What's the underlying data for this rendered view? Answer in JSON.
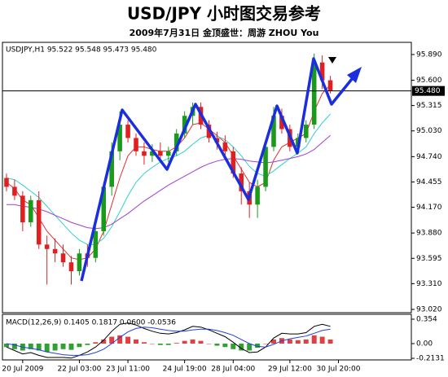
{
  "chart_data": [
    {
      "type": "candlestick",
      "title": "USD/JPY  小时图交易参考",
      "subtitle": "2009年7月31日    金顶盛世：周游 ZHOU You",
      "label": "USDJPY,H1  95.522 95.548 95.473 95.480",
      "categories": [
        null,
        null,
        "20 Jul 2009",
        null,
        null,
        null,
        null,
        null,
        null,
        "22 Jul 03:00",
        null,
        null,
        null,
        null,
        null,
        "23 Jul 11:00",
        null,
        null,
        null,
        null,
        null,
        null,
        "24 Jul 19:00",
        null,
        null,
        null,
        null,
        null,
        "28 Jul 04:00",
        null,
        null,
        null,
        null,
        null,
        null,
        "29 Jul 12:00",
        null,
        null,
        null,
        null,
        null,
        "30 Jul 20:00",
        null,
        null,
        null,
        null,
        null,
        null,
        null,
        null
      ],
      "open": [
        94.5,
        94.4,
        94.3,
        94.0,
        94.25,
        93.75,
        93.7,
        93.65,
        93.55,
        93.45,
        93.65,
        93.6,
        93.9,
        94.4,
        94.8,
        95.1,
        94.95,
        94.8,
        94.75,
        94.8,
        94.75,
        94.8,
        95.0,
        95.2,
        95.3,
        95.1,
        94.95,
        94.9,
        94.8,
        94.55,
        94.35,
        94.2,
        94.4,
        94.85,
        95.2,
        95.05,
        94.85,
        94.95,
        95.1,
        95.8,
        95.6,
        null,
        null,
        null,
        null,
        null,
        null,
        null,
        null,
        null
      ],
      "high": [
        94.55,
        94.48,
        94.35,
        94.3,
        94.35,
        93.85,
        93.82,
        93.75,
        93.62,
        93.7,
        93.75,
        93.95,
        94.45,
        94.9,
        95.25,
        95.15,
        95.0,
        94.9,
        94.88,
        94.9,
        94.85,
        95.05,
        95.25,
        95.35,
        95.35,
        95.15,
        95.02,
        94.98,
        94.85,
        94.62,
        94.45,
        94.48,
        94.9,
        95.3,
        95.28,
        95.1,
        95.0,
        95.15,
        95.9,
        95.88,
        95.65,
        null,
        null,
        null,
        null,
        null,
        null,
        null,
        null,
        null
      ],
      "low": [
        94.35,
        94.25,
        93.9,
        93.95,
        93.7,
        93.3,
        93.55,
        93.5,
        93.3,
        93.4,
        93.5,
        93.55,
        93.85,
        94.3,
        94.7,
        94.9,
        94.75,
        94.65,
        94.68,
        94.7,
        94.68,
        94.75,
        94.95,
        95.1,
        95.05,
        94.9,
        94.82,
        94.75,
        94.5,
        94.2,
        94.05,
        94.05,
        94.35,
        94.8,
        95.0,
        94.8,
        94.78,
        94.9,
        95.05,
        95.5,
        95.45,
        null,
        null,
        null,
        null,
        null,
        null,
        null,
        null,
        null
      ],
      "close": [
        94.4,
        94.3,
        94.0,
        94.25,
        93.75,
        93.7,
        93.65,
        93.55,
        93.45,
        93.65,
        93.6,
        93.9,
        94.4,
        94.8,
        95.1,
        94.95,
        94.8,
        94.75,
        94.8,
        94.75,
        94.8,
        95.0,
        95.2,
        95.3,
        95.1,
        94.95,
        94.9,
        94.8,
        94.55,
        94.35,
        94.2,
        94.4,
        94.85,
        95.2,
        95.05,
        94.85,
        94.95,
        95.1,
        95.8,
        95.6,
        95.48,
        null,
        null,
        null,
        null,
        null,
        null,
        null,
        null,
        null
      ],
      "up_color": "#1a9a1a",
      "down_color": "#e02020",
      "lines": [
        {
          "color": "#e03030",
          "values": [
            94.45,
            94.38,
            94.25,
            94.2,
            94.05,
            93.9,
            93.8,
            93.7,
            93.6,
            93.58,
            93.6,
            93.7,
            93.9,
            94.2,
            94.5,
            94.75,
            94.85,
            94.85,
            94.82,
            94.8,
            94.8,
            94.85,
            94.95,
            95.1,
            95.12,
            95.05,
            94.98,
            94.9,
            94.75,
            94.6,
            94.45,
            94.4,
            94.45,
            94.7,
            94.85,
            94.9,
            94.95,
            95.0,
            95.25,
            95.45,
            95.55,
            null,
            null,
            null,
            null,
            null,
            null,
            null,
            null,
            null
          ]
        },
        {
          "color": "#30d0d0",
          "values": [
            94.5,
            94.48,
            94.42,
            94.35,
            94.28,
            94.18,
            94.08,
            93.98,
            93.88,
            93.8,
            93.75,
            93.75,
            93.82,
            93.95,
            94.12,
            94.3,
            94.45,
            94.55,
            94.62,
            94.68,
            94.72,
            94.75,
            94.8,
            94.88,
            94.95,
            94.98,
            94.97,
            94.93,
            94.85,
            94.75,
            94.63,
            94.55,
            94.52,
            94.58,
            94.65,
            94.72,
            94.78,
            94.85,
            95.0,
            95.12,
            95.22,
            null,
            null,
            null,
            null,
            null,
            null,
            null,
            null,
            null
          ]
        },
        {
          "color": "#a040d0",
          "values": [
            94.2,
            94.2,
            94.18,
            94.17,
            94.15,
            94.12,
            94.08,
            94.04,
            94.0,
            93.97,
            93.94,
            93.93,
            93.94,
            93.98,
            94.04,
            94.1,
            94.17,
            94.24,
            94.3,
            94.36,
            94.42,
            94.47,
            94.52,
            94.57,
            94.62,
            94.66,
            94.69,
            94.71,
            94.72,
            94.71,
            94.69,
            94.68,
            94.67,
            94.68,
            94.7,
            94.72,
            94.74,
            94.77,
            94.82,
            94.9,
            94.98,
            null,
            null,
            null,
            null,
            null,
            null,
            null,
            null,
            null
          ]
        }
      ],
      "last_price": {
        "value": 95.48,
        "label": "95.480"
      },
      "ylim": [
        92.983,
        96.027
      ],
      "yticks": [
        {
          "value": 95.89,
          "label": "95.890"
        },
        {
          "value": 95.6,
          "label": "95.600"
        },
        {
          "value": 95.315,
          "label": "95.315"
        },
        {
          "value": 95.03,
          "label": "95.030"
        },
        {
          "value": 94.74,
          "label": "94.740"
        },
        {
          "value": 94.455,
          "label": "94.455"
        },
        {
          "value": 94.17,
          "label": "94.170"
        },
        {
          "value": 93.88,
          "label": "93.880"
        },
        {
          "value": 93.595,
          "label": "93.595"
        },
        {
          "value": 93.31,
          "label": "93.310"
        },
        {
          "value": 93.02,
          "label": "93.020"
        }
      ]
    },
    {
      "type": "macd",
      "label": "MACD(12,26,9) 0.1405 0.1817 0.0600 -0.0536",
      "histogram": [
        -0.05,
        -0.08,
        -0.1,
        -0.08,
        -0.1,
        -0.12,
        -0.1,
        -0.08,
        -0.09,
        -0.05,
        -0.02,
        0.02,
        0.06,
        0.1,
        0.12,
        0.1,
        0.06,
        0.02,
        0.0,
        -0.02,
        -0.02,
        0.01,
        0.04,
        0.06,
        0.04,
        0.0,
        -0.03,
        -0.05,
        -0.08,
        -0.1,
        -0.1,
        -0.06,
        0.0,
        0.06,
        0.08,
        0.06,
        0.05,
        0.06,
        0.12,
        0.1,
        0.06,
        null,
        null,
        null,
        null,
        null,
        null,
        null,
        null,
        null
      ],
      "positive_color": "#e04040",
      "negative_color": "#30a030",
      "lines": [
        {
          "color": "#000000",
          "values": [
            -0.05,
            -0.1,
            -0.15,
            -0.13,
            -0.17,
            -0.2,
            -0.2,
            -0.2,
            -0.21,
            -0.17,
            -0.12,
            -0.05,
            0.05,
            0.18,
            0.28,
            0.3,
            0.27,
            0.22,
            0.18,
            0.15,
            0.14,
            0.16,
            0.2,
            0.25,
            0.24,
            0.2,
            0.15,
            0.1,
            0.02,
            -0.07,
            -0.13,
            -0.12,
            -0.05,
            0.08,
            0.15,
            0.14,
            0.14,
            0.16,
            0.25,
            0.28,
            0.25,
            null,
            null,
            null,
            null,
            null,
            null,
            null,
            null,
            null
          ]
        },
        {
          "color": "#2040e0",
          "values": [
            0.0,
            -0.02,
            -0.05,
            -0.07,
            -0.09,
            -0.12,
            -0.14,
            -0.16,
            -0.17,
            -0.17,
            -0.16,
            -0.13,
            -0.08,
            0.0,
            0.09,
            0.17,
            0.22,
            0.24,
            0.23,
            0.21,
            0.19,
            0.18,
            0.18,
            0.2,
            0.21,
            0.21,
            0.19,
            0.16,
            0.12,
            0.06,
            0.0,
            -0.04,
            -0.05,
            -0.01,
            0.04,
            0.07,
            0.09,
            0.11,
            0.15,
            0.19,
            0.21,
            null,
            null,
            null,
            null,
            null,
            null,
            null,
            null,
            null
          ]
        }
      ],
      "ylim": [
        -0.236,
        0.425
      ],
      "yticks": [
        0.354,
        {
          "value": 0,
          "label": "0.00"
        },
        -0.2131
      ]
    }
  ]
}
